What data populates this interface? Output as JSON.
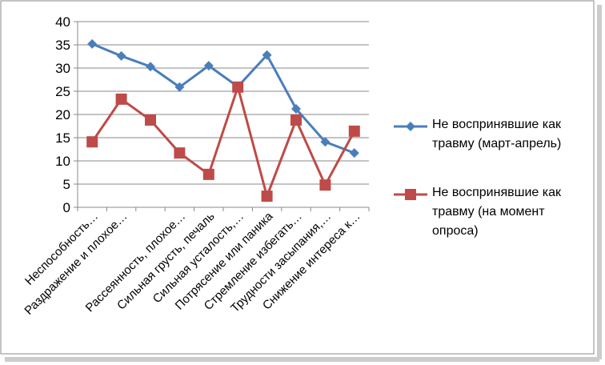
{
  "chart_data": {
    "type": "line",
    "categories": [
      "Неспособность…",
      "Раздражение и плохое…",
      null,
      "Рассеянность, плохое…",
      "Сильная грусть, печаль",
      "Сильная усталость,…",
      "Потрясение или паника",
      "Стремление избегать…",
      "Трудности засыпания,…",
      "Снижение интереса к…"
    ],
    "series": [
      {
        "name": "Не воспринявшие как травму (март-апрель)",
        "color": "#4a7ebb",
        "marker": "diamond",
        "values": [
          35.2,
          32.6,
          30.3,
          25.9,
          30.5,
          26,
          32.8,
          21.2,
          14.1,
          11.7
        ]
      },
      {
        "name": "Не воспринявшие как травму (на момент опроса)",
        "color": "#be4b48",
        "marker": "square",
        "values": [
          14.1,
          23.3,
          18.8,
          11.7,
          7.1,
          25.9,
          2.4,
          18.8,
          4.8,
          16.4
        ]
      }
    ],
    "ylim": [
      0,
      40
    ],
    "yticks": [
      0,
      5,
      10,
      15,
      20,
      25,
      30,
      35,
      40
    ],
    "grid": true,
    "legend": "right"
  }
}
